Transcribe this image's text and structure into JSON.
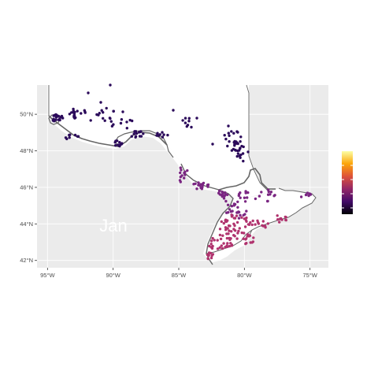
{
  "map": {
    "month_label": "Jan",
    "x_ticks": [
      "95°W",
      "90°W",
      "85°W",
      "80°W",
      "75°W"
    ],
    "y_ticks": [
      "50°N",
      "48°N",
      "46°N",
      "44°N",
      "42°N"
    ],
    "x_values": [
      -95,
      -90,
      -85,
      -80,
      -75
    ],
    "y_values": [
      50,
      48,
      46,
      44,
      42
    ],
    "lon_range": [
      -95.8,
      -73.6
    ],
    "lat_range": [
      41.6,
      51.6
    ],
    "colors": {
      "panel": "#ebebeb",
      "grid": "#ffffff",
      "land": "#ffffff",
      "border": "#666666",
      "low": "#2b0a5a",
      "mid": "#7a2682",
      "high": "#b0336e"
    },
    "colorbar": {
      "scale": "inferno",
      "stops": [
        "#000004",
        "#420a68",
        "#932667",
        "#dd513a",
        "#fca50a",
        "#fcffa4"
      ]
    }
  }
}
